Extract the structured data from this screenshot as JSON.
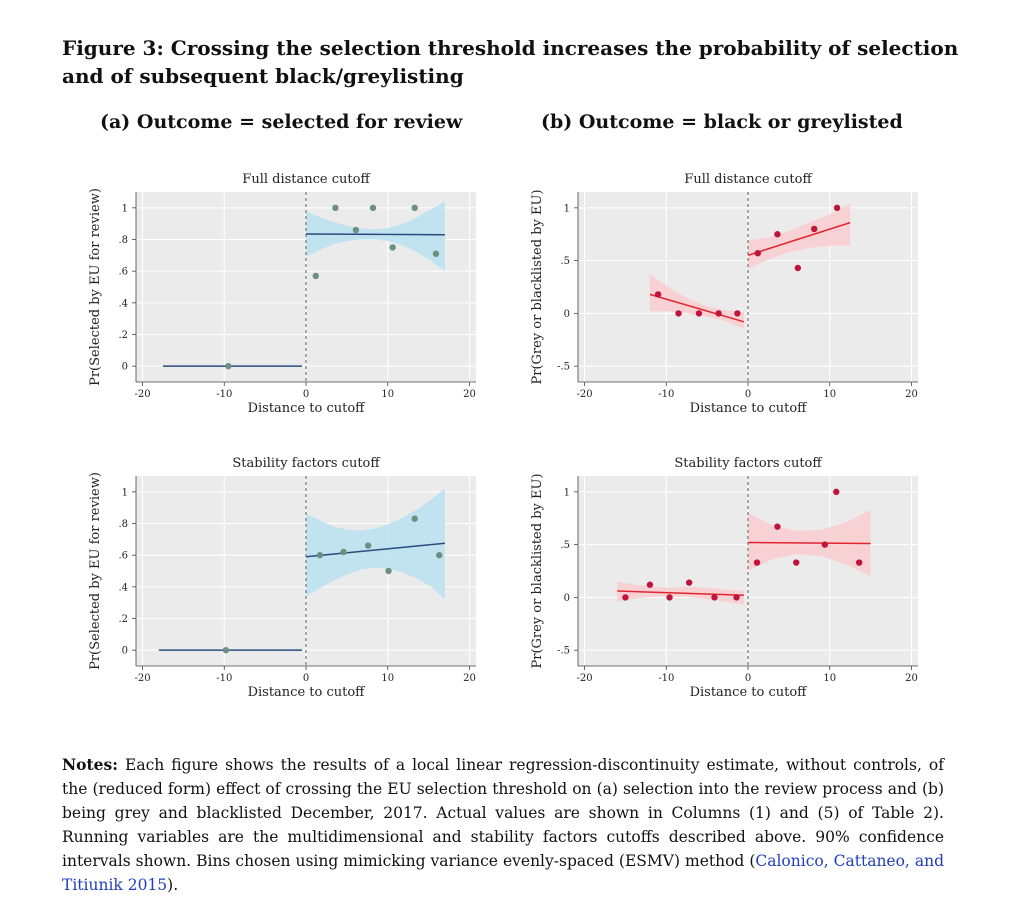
{
  "figure": {
    "title": "Figure 3: Crossing the selection threshold increases the probability of selection and of subsequent black/greylisting",
    "subtitle_a": "(a) Outcome = selected for review",
    "subtitle_b": "(b) Outcome = black or greylisted"
  },
  "notes": {
    "label": "Notes:",
    "text": " Each figure shows the results of a local linear regression-discontinuity estimate, without controls, of the (reduced form) effect of crossing the EU selection threshold on (a) selection into the review process and (b) being grey and blacklisted December, 2017. Actual values are shown in Columns (1) and (5) of Table 2). Running variables are the multidimensional and stability factors cutoffs described above. 90% confidence intervals shown. Bins chosen using mimicking variance evenly-spaced (ESMV) method (",
    "citation": "Calonico, Cattaneo, and Titiunik 2015",
    "end": ")."
  },
  "chart_data": [
    {
      "type": "scatter",
      "title": "Full distance cutoff",
      "xlabel": "Distance to cutoff",
      "ylabel": "Pr(Selected by EU for review)",
      "xlim": [
        -20,
        20
      ],
      "ylim": [
        0,
        1
      ],
      "xticks": [
        -20,
        -10,
        0,
        10,
        20
      ],
      "xtick_labels": [
        "-20",
        "-10",
        "0",
        "10",
        "20"
      ],
      "yticks": [
        0,
        0.2,
        0.4,
        0.6,
        0.8,
        1
      ],
      "ytick_labels": [
        "0",
        ".2",
        ".4",
        ".6",
        ".8",
        "1"
      ],
      "cutoff": 0,
      "colors": {
        "points": "#6b8f80",
        "line": "#2a4b7c",
        "band": "#bfe3f0",
        "background": "#ebebeb"
      },
      "points": [
        {
          "x": -9.5,
          "y": 0
        },
        {
          "x": 1.2,
          "y": 0.57
        },
        {
          "x": 3.6,
          "y": 1
        },
        {
          "x": 6.1,
          "y": 0.86
        },
        {
          "x": 8.2,
          "y": 1
        },
        {
          "x": 10.6,
          "y": 0.75
        },
        {
          "x": 13.3,
          "y": 1
        },
        {
          "x": 15.9,
          "y": 0.71
        }
      ],
      "fits": [
        {
          "x": [
            -17.5,
            -0.5
          ],
          "y": [
            0,
            0
          ]
        },
        {
          "x": [
            0,
            17
          ],
          "y": [
            0.835,
            0.83
          ]
        }
      ],
      "bands": [
        {
          "x": [
            0,
            1.7,
            3.4,
            5.1,
            6.8,
            8.5,
            10.2,
            11.9,
            13.6,
            15.3,
            17
          ],
          "lower": [
            0.69,
            0.735,
            0.77,
            0.79,
            0.8,
            0.8,
            0.79,
            0.76,
            0.72,
            0.665,
            0.6
          ],
          "upper": [
            0.98,
            0.94,
            0.91,
            0.885,
            0.87,
            0.865,
            0.875,
            0.9,
            0.94,
            0.99,
            1.04
          ]
        }
      ]
    },
    {
      "type": "scatter",
      "title": "Full distance cutoff",
      "xlabel": "Distance to cutoff",
      "ylabel": "Pr(Grey or blacklisted by EU)",
      "xlim": [
        -20,
        20
      ],
      "ylim": [
        -0.5,
        1
      ],
      "xticks": [
        -20,
        -10,
        0,
        10,
        20
      ],
      "xtick_labels": [
        "-20",
        "-10",
        "0",
        "10",
        "20"
      ],
      "yticks": [
        -0.5,
        0,
        0.5,
        1
      ],
      "ytick_labels": [
        "-.5",
        "0",
        ".5",
        "1"
      ],
      "cutoff": 0,
      "colors": {
        "points": "#c0143c",
        "line": "#e0262e",
        "band": "#f9d0d3",
        "background": "#ebebeb"
      },
      "points": [
        {
          "x": -11,
          "y": 0.18
        },
        {
          "x": -8.5,
          "y": 0
        },
        {
          "x": -6,
          "y": 0
        },
        {
          "x": -3.6,
          "y": 0
        },
        {
          "x": -1.3,
          "y": 0
        },
        {
          "x": 1.2,
          "y": 0.57
        },
        {
          "x": 3.6,
          "y": 0.75
        },
        {
          "x": 6.1,
          "y": 0.43
        },
        {
          "x": 8.1,
          "y": 0.8
        },
        {
          "x": 10.9,
          "y": 1
        }
      ],
      "fits": [
        {
          "x": [
            -12,
            -0.5
          ],
          "y": [
            0.18,
            -0.08
          ]
        },
        {
          "x": [
            0,
            12.5
          ],
          "y": [
            0.55,
            0.86
          ]
        }
      ],
      "bands": [
        {
          "x": [
            -12,
            -9.7,
            -7.4,
            -5.1,
            -2.8,
            -0.5
          ],
          "lower": [
            0.02,
            0.02,
            0.0,
            -0.03,
            -0.07,
            -0.15
          ],
          "upper": [
            0.37,
            0.25,
            0.14,
            0.07,
            0.03,
            0.01
          ]
        },
        {
          "x": [
            0,
            2.5,
            5,
            7.5,
            10,
            12.5
          ],
          "lower": [
            0.42,
            0.51,
            0.58,
            0.62,
            0.64,
            0.64
          ],
          "upper": [
            0.69,
            0.72,
            0.78,
            0.86,
            0.94,
            1.04
          ]
        }
      ]
    },
    {
      "type": "scatter",
      "title": "Stability factors cutoff",
      "xlabel": "Distance to cutoff",
      "ylabel": "Pr(Selected by EU for review)",
      "xlim": [
        -20,
        20
      ],
      "ylim": [
        0,
        1
      ],
      "xticks": [
        -20,
        -10,
        0,
        10,
        20
      ],
      "xtick_labels": [
        "-20",
        "-10",
        "0",
        "10",
        "20"
      ],
      "yticks": [
        0,
        0.2,
        0.4,
        0.6,
        0.8,
        1
      ],
      "ytick_labels": [
        "0",
        ".2",
        ".4",
        ".6",
        ".8",
        "1"
      ],
      "cutoff": 0,
      "colors": {
        "points": "#6b8f80",
        "line": "#2a4b7c",
        "band": "#bfe3f0",
        "background": "#ebebeb"
      },
      "points": [
        {
          "x": -9.8,
          "y": 0
        },
        {
          "x": 1.7,
          "y": 0.6
        },
        {
          "x": 4.6,
          "y": 0.62
        },
        {
          "x": 7.6,
          "y": 0.66
        },
        {
          "x": 10.1,
          "y": 0.5
        },
        {
          "x": 13.3,
          "y": 0.83
        },
        {
          "x": 16.3,
          "y": 0.6
        }
      ],
      "fits": [
        {
          "x": [
            -18,
            -0.5
          ],
          "y": [
            0,
            0
          ]
        },
        {
          "x": [
            0,
            17
          ],
          "y": [
            0.59,
            0.675
          ]
        }
      ],
      "bands": [
        {
          "x": [
            0,
            1.7,
            3.4,
            5.1,
            6.8,
            8.5,
            10.2,
            11.9,
            13.6,
            15.3,
            17
          ],
          "lower": [
            0.34,
            0.39,
            0.44,
            0.48,
            0.51,
            0.52,
            0.51,
            0.49,
            0.45,
            0.4,
            0.32
          ],
          "upper": [
            0.86,
            0.82,
            0.78,
            0.76,
            0.755,
            0.77,
            0.8,
            0.84,
            0.89,
            0.95,
            1.02
          ]
        }
      ]
    },
    {
      "type": "scatter",
      "title": "Stability factors cutoff",
      "xlabel": "Distance to cutoff",
      "ylabel": "Pr(Grey or blacklisted by EU)",
      "xlim": [
        -20,
        20
      ],
      "ylim": [
        -0.5,
        1
      ],
      "xticks": [
        -20,
        -10,
        0,
        10,
        20
      ],
      "xtick_labels": [
        "-20",
        "-10",
        "0",
        "10",
        "20"
      ],
      "yticks": [
        -0.5,
        0,
        0.5,
        1
      ],
      "ytick_labels": [
        "-.5",
        "0",
        ".5",
        "1"
      ],
      "cutoff": 0,
      "colors": {
        "points": "#c0143c",
        "line": "#e0262e",
        "band": "#f9d0d3",
        "background": "#ebebeb"
      },
      "points": [
        {
          "x": -15,
          "y": 0
        },
        {
          "x": -12,
          "y": 0.12
        },
        {
          "x": -9.6,
          "y": 0
        },
        {
          "x": -7.2,
          "y": 0.14
        },
        {
          "x": -4.1,
          "y": 0
        },
        {
          "x": -1.4,
          "y": 0
        },
        {
          "x": 1.1,
          "y": 0.33
        },
        {
          "x": 3.6,
          "y": 0.67
        },
        {
          "x": 5.9,
          "y": 0.33
        },
        {
          "x": 9.4,
          "y": 0.5
        },
        {
          "x": 10.8,
          "y": 1
        },
        {
          "x": 13.6,
          "y": 0.33
        }
      ],
      "fits": [
        {
          "x": [
            -16,
            -0.5
          ],
          "y": [
            0.06,
            0.02
          ]
        },
        {
          "x": [
            0,
            15
          ],
          "y": [
            0.52,
            0.51
          ]
        }
      ],
      "bands": [
        {
          "x": [
            -16,
            -12.9,
            -9.8,
            -6.7,
            -3.6,
            -0.5
          ],
          "lower": [
            -0.04,
            0.0,
            0.01,
            0.0,
            -0.03,
            -0.07
          ],
          "upper": [
            0.15,
            0.11,
            0.09,
            0.1,
            0.08,
            0.06
          ]
        },
        {
          "x": [
            0,
            3,
            6,
            9,
            12,
            15
          ],
          "lower": [
            0.25,
            0.36,
            0.41,
            0.39,
            0.31,
            0.2
          ],
          "upper": [
            0.8,
            0.68,
            0.63,
            0.64,
            0.71,
            0.83
          ]
        }
      ]
    }
  ]
}
